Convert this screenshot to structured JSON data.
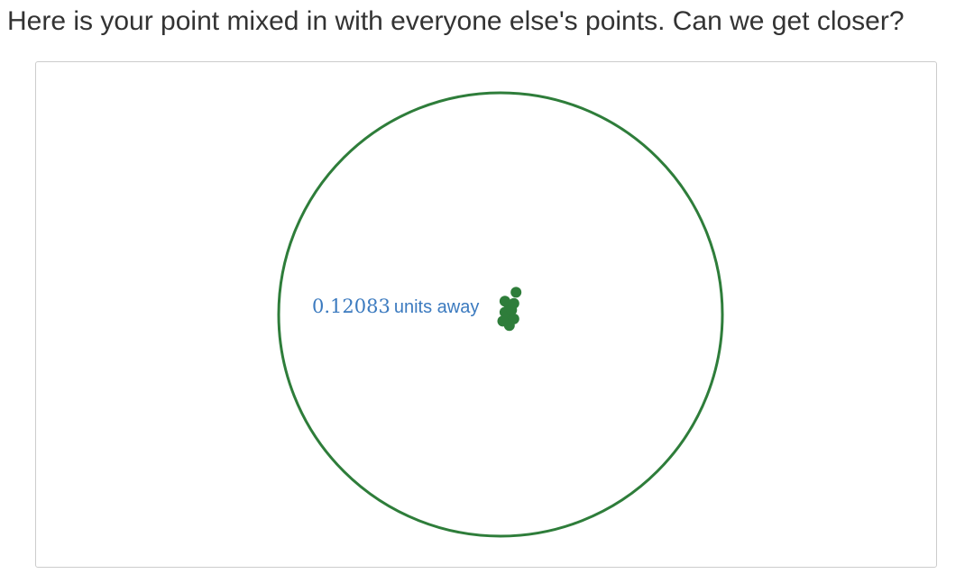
{
  "page": {
    "heading": "Here is your point mixed in with everyone else's points. Can we get closer?"
  },
  "plot": {
    "distance_value": "0.12083",
    "distance_units": "units away",
    "circle_color": "#2e7d3a",
    "point_color": "#2e7d3a",
    "label_color": "#3b7abf",
    "points": [
      {
        "x": 0.07,
        "y": 0.1
      },
      {
        "x": 0.04,
        "y": 0.04
      },
      {
        "x": 0.03,
        "y": -0.01
      },
      {
        "x": 0.06,
        "y": -0.02
      },
      {
        "x": 0.02,
        "y": 0.01
      },
      {
        "x": 0.05,
        "y": 0.02
      },
      {
        "x": 0.01,
        "y": -0.03
      },
      {
        "x": 0.04,
        "y": -0.05
      },
      {
        "x": 0.02,
        "y": 0.06
      },
      {
        "x": 0.06,
        "y": 0.05
      }
    ]
  }
}
